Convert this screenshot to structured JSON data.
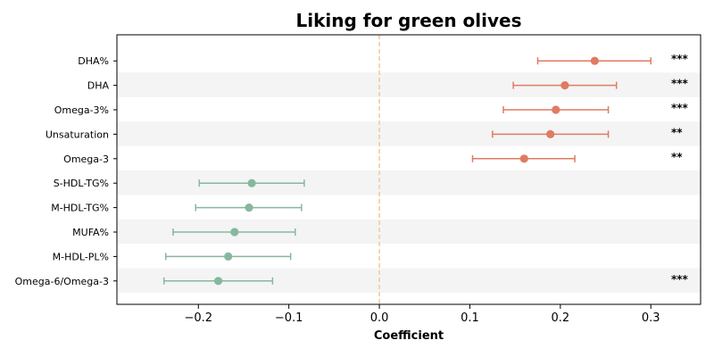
{
  "chart_data": {
    "type": "forest",
    "title": "Liking for green olives",
    "xlabel": "Coefficient",
    "ylabel": "",
    "xlim": [
      -0.29,
      0.355
    ],
    "xticks": [
      -0.2,
      -0.1,
      0.0,
      0.1,
      0.2,
      0.3
    ],
    "xtick_labels": [
      "−0.2",
      "−0.1",
      "0.0",
      "0.1",
      "0.2",
      "0.3"
    ],
    "reference_line": 0.0,
    "colors": {
      "positive": "#e07b62",
      "negative": "#86b89e",
      "reference": "#f4c89a",
      "band": "#f4f4f4"
    },
    "rows": [
      {
        "label": "DHA%",
        "estimate": 0.238,
        "lower": 0.175,
        "upper": 0.3,
        "significance": "***"
      },
      {
        "label": "DHA",
        "estimate": 0.205,
        "lower": 0.148,
        "upper": 0.262,
        "significance": "***"
      },
      {
        "label": "Omega-3%",
        "estimate": 0.195,
        "lower": 0.137,
        "upper": 0.253,
        "significance": "***"
      },
      {
        "label": "Unsaturation",
        "estimate": 0.189,
        "lower": 0.125,
        "upper": 0.253,
        "significance": "**"
      },
      {
        "label": "Omega-3",
        "estimate": 0.16,
        "lower": 0.103,
        "upper": 0.216,
        "significance": "**"
      },
      {
        "label": "S-HDL-TG%",
        "estimate": -0.141,
        "lower": -0.199,
        "upper": -0.083,
        "significance": ""
      },
      {
        "label": "M-HDL-TG%",
        "estimate": -0.144,
        "lower": -0.203,
        "upper": -0.086,
        "significance": ""
      },
      {
        "label": "MUFA%",
        "estimate": -0.16,
        "lower": -0.228,
        "upper": -0.093,
        "significance": ""
      },
      {
        "label": "M-HDL-PL%",
        "estimate": -0.167,
        "lower": -0.236,
        "upper": -0.098,
        "significance": ""
      },
      {
        "label": "Omega-6/Omega-3",
        "estimate": -0.178,
        "lower": -0.238,
        "upper": -0.118,
        "significance": "***"
      }
    ]
  }
}
